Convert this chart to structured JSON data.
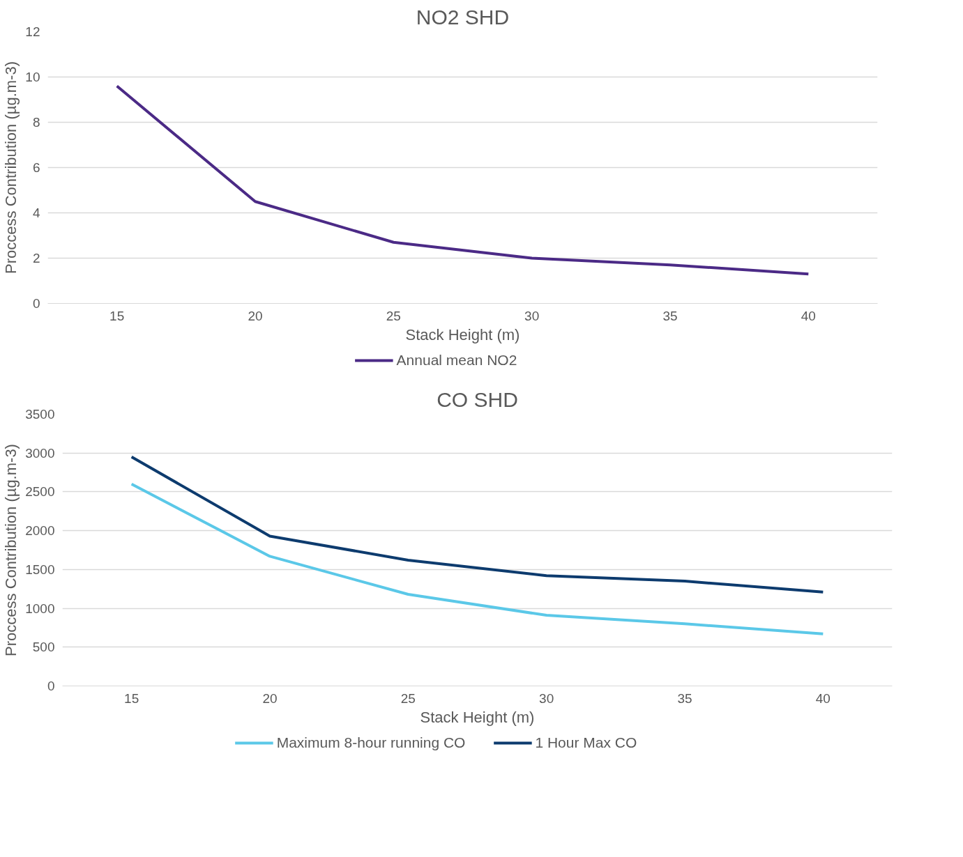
{
  "chart_data": [
    {
      "type": "line",
      "title": "NO2 SHD",
      "xlabel": "Stack Height (m)",
      "ylabel": "Proccess Contribution (µg.m-3)",
      "categories": [
        "15",
        "20",
        "25",
        "30",
        "35",
        "40"
      ],
      "ylim": [
        0,
        12
      ],
      "yticks": [
        0,
        2,
        4,
        6,
        8,
        10,
        12
      ],
      "grid": "y",
      "legend": "bottom",
      "marker": "none",
      "line_style": "solid",
      "series": [
        {
          "name": "Annual mean NO2",
          "color": "#4b2a86",
          "values": [
            9.6,
            4.5,
            2.7,
            2.0,
            1.7,
            1.3
          ]
        }
      ]
    },
    {
      "type": "line",
      "title": "CO SHD",
      "xlabel": "Stack Height (m)",
      "ylabel": "Proccess Contribution (µg.m-3)",
      "categories": [
        "15",
        "20",
        "25",
        "30",
        "35",
        "40"
      ],
      "ylim": [
        0,
        3500
      ],
      "yticks": [
        0,
        500,
        1000,
        1500,
        2000,
        2500,
        3000,
        3500
      ],
      "grid": "y",
      "legend": "bottom",
      "marker": "none",
      "line_style": "solid",
      "series": [
        {
          "name": "Maximum 8-hour running CO",
          "color": "#5bc8e8",
          "values": [
            2600,
            1670,
            1180,
            910,
            800,
            670
          ]
        },
        {
          "name": "1 Hour Max CO",
          "color": "#0d3b6e",
          "values": [
            2950,
            1930,
            1620,
            1420,
            1350,
            1210
          ]
        }
      ]
    }
  ]
}
